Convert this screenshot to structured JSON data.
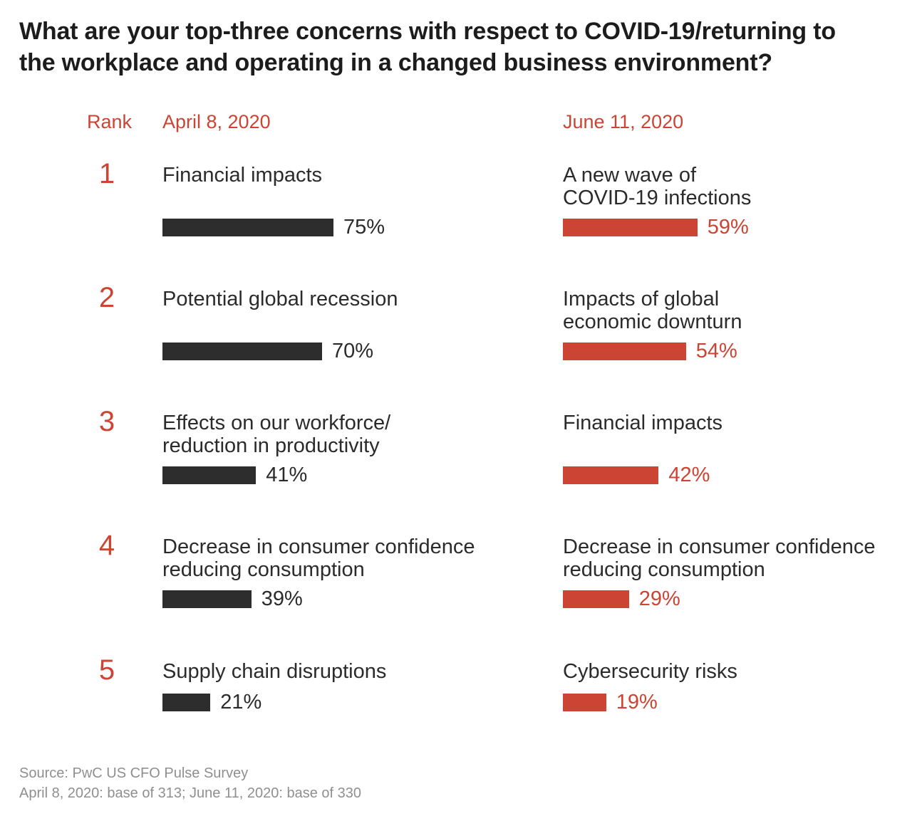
{
  "title": "What are your top-three concerns with respect to COVID-19/returning to\nthe workplace and operating in a changed business environment?",
  "header": {
    "rank_label": "Rank",
    "april_label": "April 8, 2020",
    "june_label": "June 11, 2020"
  },
  "colors": {
    "accent_red": "#cc4433",
    "bar_dark": "#2d2d2d",
    "source_gray": "#8f8f8f"
  },
  "chart_data": {
    "type": "bar",
    "title": "What are your top-three concerns with respect to COVID-19/returning to the workplace and operating in a changed business environment?",
    "orientation": "horizontal",
    "unit": "percent",
    "xlim": [
      0,
      100
    ],
    "columns": [
      "April 8, 2020",
      "June 11, 2020"
    ],
    "bar_colors": {
      "april": "#2d2d2d",
      "june": "#cc4433"
    },
    "rows": [
      {
        "rank": "1",
        "april": {
          "label": "Financial impacts",
          "value": 75,
          "value_label": "75%"
        },
        "june": {
          "label": "A new wave of\nCOVID-19 infections",
          "value": 59,
          "value_label": "59%"
        }
      },
      {
        "rank": "2",
        "april": {
          "label": "Potential global recession",
          "value": 70,
          "value_label": "70%"
        },
        "june": {
          "label": "Impacts of global\neconomic downturn",
          "value": 54,
          "value_label": "54%"
        }
      },
      {
        "rank": "3",
        "april": {
          "label": "Effects on our workforce/\nreduction in productivity",
          "value": 41,
          "value_label": "41%"
        },
        "june": {
          "label": "Financial impacts",
          "value": 42,
          "value_label": "42%"
        }
      },
      {
        "rank": "4",
        "april": {
          "label": "Decrease in consumer confidence\nreducing consumption",
          "value": 39,
          "value_label": "39%"
        },
        "june": {
          "label": "Decrease in consumer confidence\nreducing consumption",
          "value": 29,
          "value_label": "29%"
        }
      },
      {
        "rank": "5",
        "april": {
          "label": "Supply chain disruptions",
          "value": 21,
          "value_label": "21%"
        },
        "june": {
          "label": "Cybersecurity risks",
          "value": 19,
          "value_label": "19%"
        }
      }
    ]
  },
  "source": {
    "line1": "Source: PwC US CFO Pulse Survey",
    "line2": "April 8, 2020: base of 313; June 11, 2020: base of 330"
  }
}
